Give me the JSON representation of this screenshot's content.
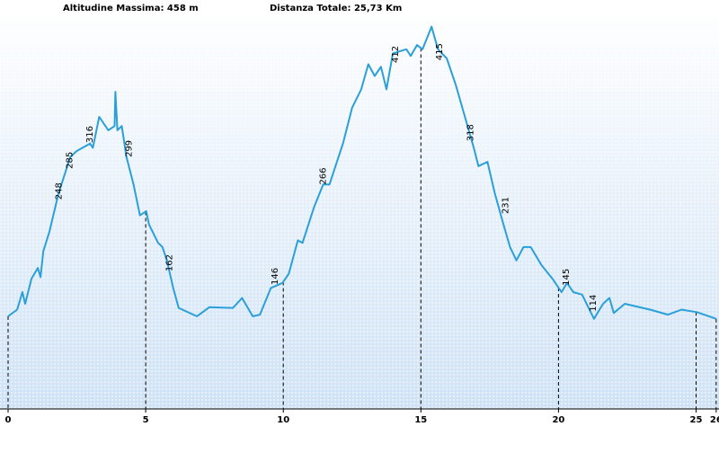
{
  "chart_data": {
    "type": "line",
    "title": "Altitudine Massima: 458 m",
    "subtitle": "Distanza Totale: 25,73 Km",
    "color": "#2a9fd8",
    "x": [
      0,
      0.33,
      0.52,
      0.62,
      0.85,
      1.08,
      1.18,
      1.28,
      1.5,
      1.84,
      2.0,
      2.26,
      2.49,
      2.98,
      3.08,
      3.31,
      3.64,
      3.87,
      3.9,
      3.97,
      4.13,
      4.3,
      4.56,
      4.79,
      5.02,
      5.12,
      5.45,
      5.61,
      5.77,
      6.0,
      6.2,
      6.86,
      7.32,
      8.17,
      8.5,
      8.89,
      9.15,
      9.55,
      9.97,
      10.2,
      10.53,
      10.7,
      11.12,
      11.45,
      11.68,
      12.17,
      12.5,
      12.83,
      13.09,
      13.32,
      13.55,
      13.75,
      13.98,
      14.47,
      14.63,
      14.86,
      15.06,
      15.39,
      15.62,
      15.94,
      16.27,
      16.6,
      16.93,
      17.09,
      17.42,
      17.68,
      18.0,
      18.24,
      18.47,
      18.73,
      18.99,
      19.39,
      19.78,
      20.11,
      20.31,
      20.54,
      20.86,
      21.29,
      21.62,
      21.85,
      22.01,
      22.41,
      23.33,
      23.98,
      24.47,
      25.03,
      25.73
    ],
    "values": [
      111,
      119,
      140,
      126,
      156,
      169,
      158,
      189,
      212,
      259,
      275,
      302,
      309,
      318,
      313,
      350,
      334,
      339,
      380,
      334,
      339,
      302,
      269,
      232,
      237,
      221,
      199,
      194,
      178,
      145,
      121,
      111,
      122,
      121,
      133,
      111,
      113,
      145,
      151,
      162,
      202,
      199,
      242,
      269,
      269,
      318,
      361,
      383,
      413,
      399,
      410,
      383,
      426,
      431,
      423,
      436,
      431,
      458,
      431,
      420,
      388,
      350,
      312,
      291,
      296,
      259,
      221,
      194,
      178,
      194,
      194,
      172,
      156,
      140,
      151,
      140,
      137,
      108,
      126,
      133,
      115,
      126,
      119,
      113,
      119,
      116,
      108
    ],
    "annotations": [
      {
        "x": 1.84,
        "value": 248
      },
      {
        "x": 2.23,
        "value": 285
      },
      {
        "x": 2.98,
        "value": 316
      },
      {
        "x": 4.4,
        "value": 299
      },
      {
        "x": 5.87,
        "value": 162
      },
      {
        "x": 9.7,
        "value": 146
      },
      {
        "x": 11.45,
        "value": 266
      },
      {
        "x": 14.07,
        "value": 412
      },
      {
        "x": 15.68,
        "value": 415
      },
      {
        "x": 16.8,
        "value": 318
      },
      {
        "x": 18.07,
        "value": 231
      },
      {
        "x": 20.28,
        "value": 145
      },
      {
        "x": 21.26,
        "value": 114
      }
    ],
    "xlim": [
      0,
      25.8
    ],
    "ylim": [
      0,
      490
    ],
    "xticks": [
      0,
      5,
      10,
      15,
      20,
      25,
      {
        "value": 25.73,
        "label": "26"
      }
    ]
  }
}
